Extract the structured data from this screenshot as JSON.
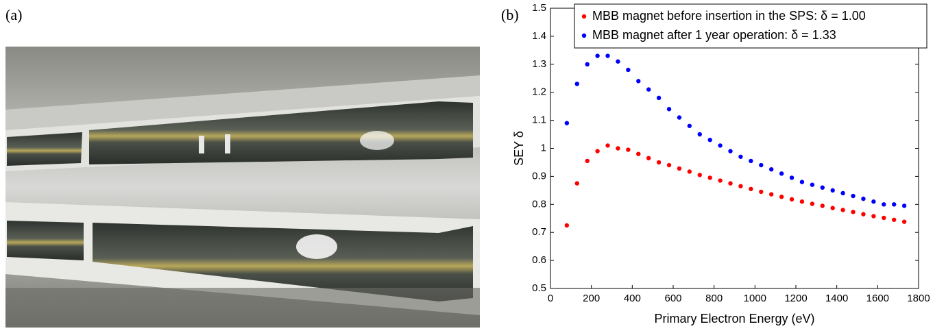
{
  "panel_a": {
    "label": "(a)"
  },
  "chart_data": {
    "type": "scatter",
    "panel_label": "(b)",
    "x_label": "Primary Electron Energy (eV)",
    "y_label": "SEY δ",
    "x": [
      80,
      130,
      180,
      230,
      280,
      330,
      380,
      430,
      480,
      530,
      580,
      630,
      680,
      730,
      780,
      830,
      880,
      930,
      980,
      1030,
      1080,
      1130,
      1180,
      1230,
      1280,
      1330,
      1380,
      1430,
      1480,
      1530,
      1580,
      1630,
      1680,
      1730
    ],
    "series": [
      {
        "name": "MBB magnet before insertion in the SPS: δ = 1.00",
        "color": "#ff0000",
        "values": [
          0.725,
          0.875,
          0.955,
          0.99,
          1.01,
          1.0,
          0.995,
          0.98,
          0.965,
          0.95,
          0.94,
          0.928,
          0.917,
          0.905,
          0.895,
          0.885,
          0.875,
          0.865,
          0.855,
          0.845,
          0.836,
          0.827,
          0.818,
          0.81,
          0.802,
          0.795,
          0.787,
          0.78,
          0.773,
          0.765,
          0.758,
          0.752,
          0.745,
          0.738
        ]
      },
      {
        "name": "MBB magnet after 1 year operation: δ = 1.33",
        "color": "#0000ff",
        "values": [
          1.09,
          1.23,
          1.3,
          1.33,
          1.33,
          1.31,
          1.28,
          1.24,
          1.21,
          1.18,
          1.14,
          1.11,
          1.08,
          1.05,
          1.03,
          1.01,
          0.99,
          0.97,
          0.955,
          0.94,
          0.925,
          0.91,
          0.895,
          0.88,
          0.87,
          0.86,
          0.85,
          0.84,
          0.83,
          0.82,
          0.81,
          0.8,
          0.8,
          0.795
        ]
      }
    ],
    "xlim": [
      0,
      1800
    ],
    "xticks": [
      0,
      200,
      400,
      600,
      800,
      1000,
      1200,
      1400,
      1600,
      1800
    ],
    "ylim": [
      0.5,
      1.5
    ],
    "yticks": [
      0.5,
      0.6,
      0.7,
      0.8,
      0.9,
      1,
      1.1,
      1.2,
      1.3,
      1.4,
      1.5
    ],
    "grid": false,
    "legend": "upper-left"
  }
}
